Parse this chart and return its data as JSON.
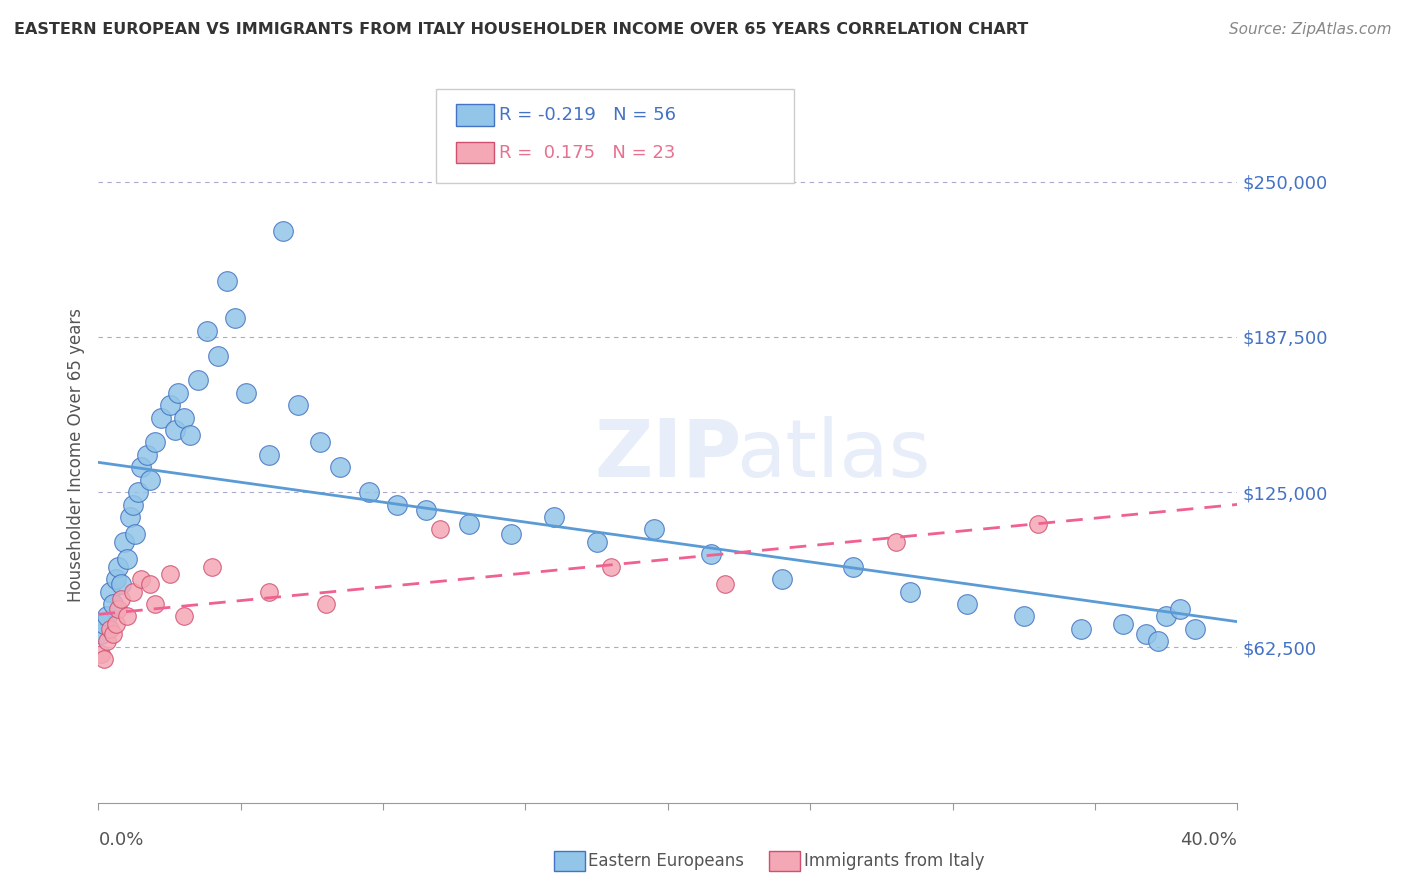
{
  "title": "EASTERN EUROPEAN VS IMMIGRANTS FROM ITALY HOUSEHOLDER INCOME OVER 65 YEARS CORRELATION CHART",
  "source": "Source: ZipAtlas.com",
  "ylabel": "Householder Income Over 65 years",
  "yticks": [
    0,
    62500,
    125000,
    187500,
    250000
  ],
  "ytick_labels": [
    "",
    "$62,500",
    "$125,000",
    "$187,500",
    "$250,000"
  ],
  "xmin": 0.0,
  "xmax": 0.4,
  "ymin": 0,
  "ymax": 280000,
  "blue_color": "#92C5E8",
  "pink_color": "#F4A7B4",
  "blue_line_color": "#5B9BD5",
  "pink_line_color": "#F06090",
  "blue_edge_color": "#4472C4",
  "pink_edge_color": "#D05070",
  "blue_scatter_x": [
    0.001,
    0.002,
    0.003,
    0.004,
    0.005,
    0.006,
    0.007,
    0.008,
    0.009,
    0.01,
    0.011,
    0.012,
    0.013,
    0.014,
    0.015,
    0.017,
    0.018,
    0.02,
    0.022,
    0.025,
    0.027,
    0.028,
    0.03,
    0.032,
    0.035,
    0.038,
    0.042,
    0.045,
    0.048,
    0.052,
    0.06,
    0.065,
    0.07,
    0.078,
    0.085,
    0.095,
    0.105,
    0.115,
    0.13,
    0.145,
    0.16,
    0.175,
    0.195,
    0.215,
    0.24,
    0.265,
    0.285,
    0.305,
    0.325,
    0.345,
    0.36,
    0.368,
    0.372,
    0.375,
    0.38,
    0.385
  ],
  "blue_scatter_y": [
    68000,
    72000,
    75000,
    85000,
    80000,
    90000,
    95000,
    88000,
    105000,
    98000,
    115000,
    120000,
    108000,
    125000,
    135000,
    140000,
    130000,
    145000,
    155000,
    160000,
    150000,
    165000,
    155000,
    148000,
    170000,
    190000,
    180000,
    210000,
    195000,
    165000,
    140000,
    230000,
    160000,
    145000,
    135000,
    125000,
    120000,
    118000,
    112000,
    108000,
    115000,
    105000,
    110000,
    100000,
    90000,
    95000,
    85000,
    80000,
    75000,
    70000,
    72000,
    68000,
    65000,
    75000,
    78000,
    70000
  ],
  "pink_scatter_x": [
    0.001,
    0.002,
    0.003,
    0.004,
    0.005,
    0.006,
    0.007,
    0.008,
    0.01,
    0.012,
    0.015,
    0.018,
    0.02,
    0.025,
    0.03,
    0.04,
    0.06,
    0.08,
    0.12,
    0.18,
    0.22,
    0.28,
    0.33
  ],
  "pink_scatter_y": [
    60000,
    58000,
    65000,
    70000,
    68000,
    72000,
    78000,
    82000,
    75000,
    85000,
    90000,
    88000,
    80000,
    92000,
    75000,
    95000,
    85000,
    80000,
    110000,
    95000,
    88000,
    105000,
    112000
  ]
}
